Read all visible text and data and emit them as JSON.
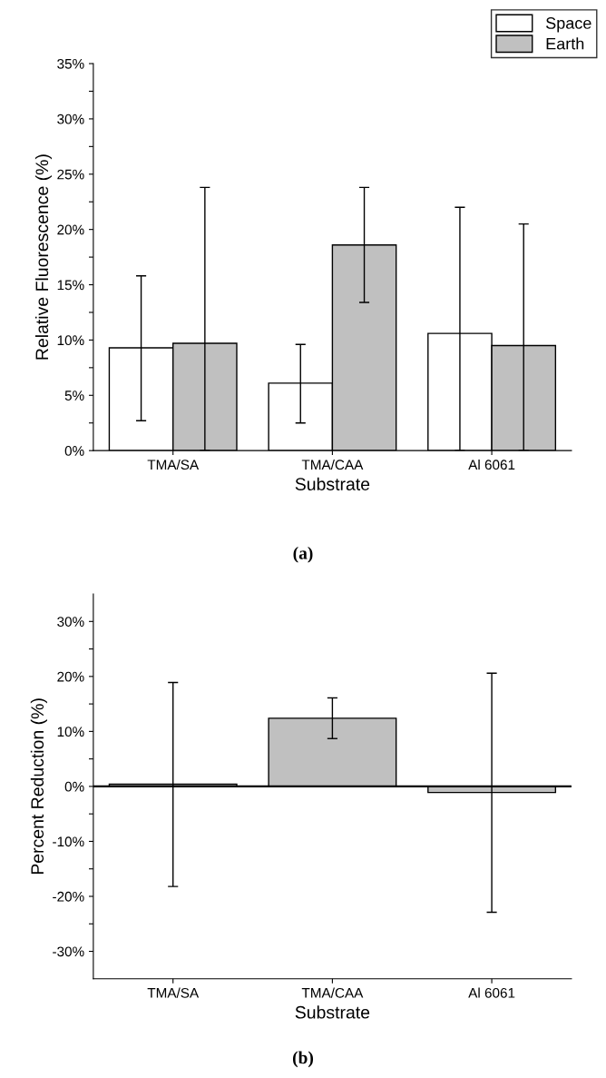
{
  "chart_data": [
    {
      "type": "bar",
      "xlabel": "Substrate",
      "ylabel": "Relative Fluorescence (%)",
      "categories": [
        "TMA/SA",
        "TMA/CAA",
        "Al 6061"
      ],
      "series": [
        {
          "name": "Space",
          "color": "#ffffff",
          "values": [
            9.3,
            6.1,
            10.6
          ],
          "errors": [
            [
              2.7,
              15.8
            ],
            [
              2.5,
              9.6
            ],
            [
              0,
              22.0
            ]
          ]
        },
        {
          "name": "Earth",
          "color": "#c0c0c0",
          "values": [
            9.7,
            18.6,
            9.5
          ],
          "errors": [
            [
              0,
              23.8
            ],
            [
              13.4,
              23.8
            ],
            [
              0,
              20.5
            ]
          ]
        }
      ],
      "ylim": [
        0,
        35
      ],
      "yticks": [
        {
          "value": 0,
          "label": "0%"
        },
        {
          "value": 2.5,
          "label": null
        },
        {
          "value": 5,
          "label": "5%"
        },
        {
          "value": 7.5,
          "label": null
        },
        {
          "value": 10,
          "label": "10%"
        },
        {
          "value": 12.5,
          "label": null
        },
        {
          "value": 15,
          "label": "15%"
        },
        {
          "value": 17.5,
          "label": null
        },
        {
          "value": 20,
          "label": "20%"
        },
        {
          "value": 22.5,
          "label": null
        },
        {
          "value": 25,
          "label": "25%"
        },
        {
          "value": 27.5,
          "label": null
        },
        {
          "value": 30,
          "label": "30%"
        },
        {
          "value": 32.5,
          "label": null
        },
        {
          "value": 35,
          "label": "35%"
        }
      ],
      "legend": "top right",
      "grid": false,
      "annotations": [
        "(a)"
      ]
    },
    {
      "type": "bar",
      "xlabel": "Substrate",
      "ylabel": "Percent Reduction (%)",
      "categories": [
        "TMA/SA",
        "TMA/CAA",
        "Al 6061"
      ],
      "values": [
        0.4,
        12.4,
        -1.1
      ],
      "colors": [
        "#c0c0c0",
        "#c0c0c0",
        "#c0c0c0"
      ],
      "errors": [
        [
          -18.2,
          18.9
        ],
        [
          8.7,
          16.1
        ],
        [
          -22.9,
          20.6
        ]
      ],
      "ylim": [
        -35,
        35
      ],
      "yticks": [
        {
          "value": -30,
          "label": "-30%"
        },
        {
          "value": -25,
          "label": null
        },
        {
          "value": -20,
          "label": "-20%"
        },
        {
          "value": -15,
          "label": null
        },
        {
          "value": -10,
          "label": "-10%"
        },
        {
          "value": -5,
          "label": null
        },
        {
          "value": 0,
          "label": "0%"
        },
        {
          "value": 5,
          "label": null
        },
        {
          "value": 10,
          "label": "10%"
        },
        {
          "value": 15,
          "label": null
        },
        {
          "value": 20,
          "label": "20%"
        },
        {
          "value": 25,
          "label": null
        },
        {
          "value": 30,
          "label": "30%"
        }
      ],
      "ref_lines": [
        {
          "axis": "y",
          "value": 0,
          "color": "#000000"
        }
      ],
      "grid": false,
      "annotations": [
        "(b)"
      ]
    }
  ]
}
